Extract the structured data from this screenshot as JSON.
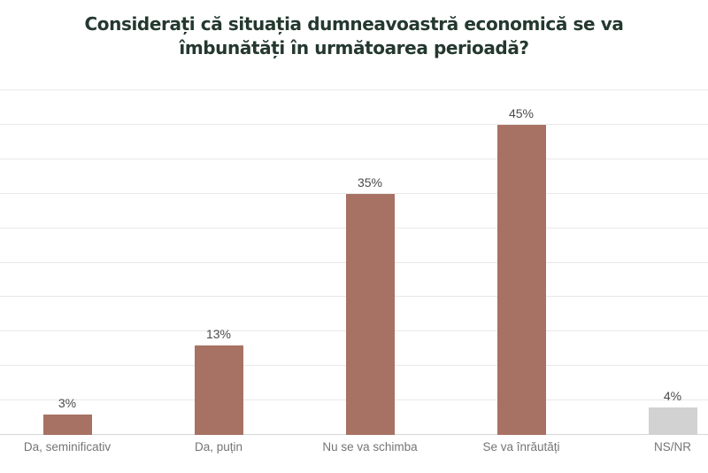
{
  "title": "Considerați că situația dumneavoastră economică se va îmbunătăți în următoarea perioadă?",
  "colors": {
    "background": "#ffffff",
    "title_text": "#24382f",
    "bar_primary": "#a77263",
    "bar_muted": "#d2d2d2",
    "gridline": "#e9e9e9",
    "axis_line": "#d8d8d8",
    "value_label": "#4a4a4a",
    "category_label": "#757575"
  },
  "chart_data": {
    "type": "bar",
    "title": "Considerați că situația dumneavoastră economică se va îmbunătăți în următoarea perioadă?",
    "categories": [
      "Da, seminificativ",
      "Da, puțin",
      "Nu se va schimba",
      "Se va înrăutăți",
      "NS/NR"
    ],
    "values": [
      3,
      13,
      35,
      45,
      4
    ],
    "value_labels": [
      "3%",
      "13%",
      "35%",
      "45%",
      "4%"
    ],
    "bar_colors": [
      "#a77263",
      "#a77263",
      "#a77263",
      "#a77263",
      "#d2d2d2"
    ],
    "xlabel": "",
    "ylabel": "",
    "ylim": [
      0,
      50
    ],
    "gridline_step": 5,
    "grid": true,
    "y_tick_labels_visible": false,
    "legend_position": "none"
  }
}
